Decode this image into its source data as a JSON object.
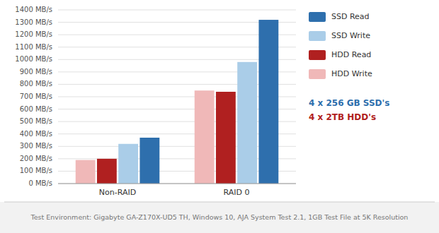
{
  "chart_data": {
    "type": "bar",
    "categories": [
      "Non-RAID",
      "RAID 0"
    ],
    "series": [
      {
        "name": "HDD Write",
        "color": "#f0b8b8",
        "values": [
          190,
          750
        ]
      },
      {
        "name": "HDD Read",
        "color": "#b02020",
        "values": [
          200,
          740
        ]
      },
      {
        "name": "SSD Write",
        "color": "#aacde8",
        "values": [
          320,
          980
        ]
      },
      {
        "name": "SSD Read",
        "color": "#2e6fad",
        "values": [
          370,
          1320
        ]
      }
    ],
    "ylim": [
      0,
      1400
    ],
    "yticks": [
      {
        "value": 0,
        "label": "0 MB/s"
      },
      {
        "value": 100,
        "label": "100 MB/s"
      },
      {
        "value": 200,
        "label": "200 MB/s"
      },
      {
        "value": 300,
        "label": "300 MB/s"
      },
      {
        "value": 400,
        "label": "400 MB/s"
      },
      {
        "value": 500,
        "label": "500 MB/s"
      },
      {
        "value": 600,
        "label": "600 MB/s"
      },
      {
        "value": 700,
        "label": "700 MB/s"
      },
      {
        "value": 800,
        "label": "800 MB/s"
      },
      {
        "value": 900,
        "label": "900 MB/s"
      },
      {
        "value": 1000,
        "label": "1000 MB/s"
      },
      {
        "value": 1100,
        "label": "1100 MB/s"
      },
      {
        "value": 1200,
        "label": "1200 MB/s"
      },
      {
        "value": 1300,
        "label": "1300 MB/s"
      },
      {
        "value": 1400,
        "label": "1400 MB/s"
      }
    ],
    "grid": true,
    "annotations": [
      {
        "text": "4 x 256 GB SSD's",
        "color": "#2e6fad"
      },
      {
        "text": "4 x 2TB HDD's",
        "color": "#b02020"
      },
      {
        "text": "Test Environment: Gigabyte GA-Z170X-UD5 TH, Windows 10, AJA System Test 2.1, 1GB Test File at 5K Resolution"
      }
    ]
  }
}
